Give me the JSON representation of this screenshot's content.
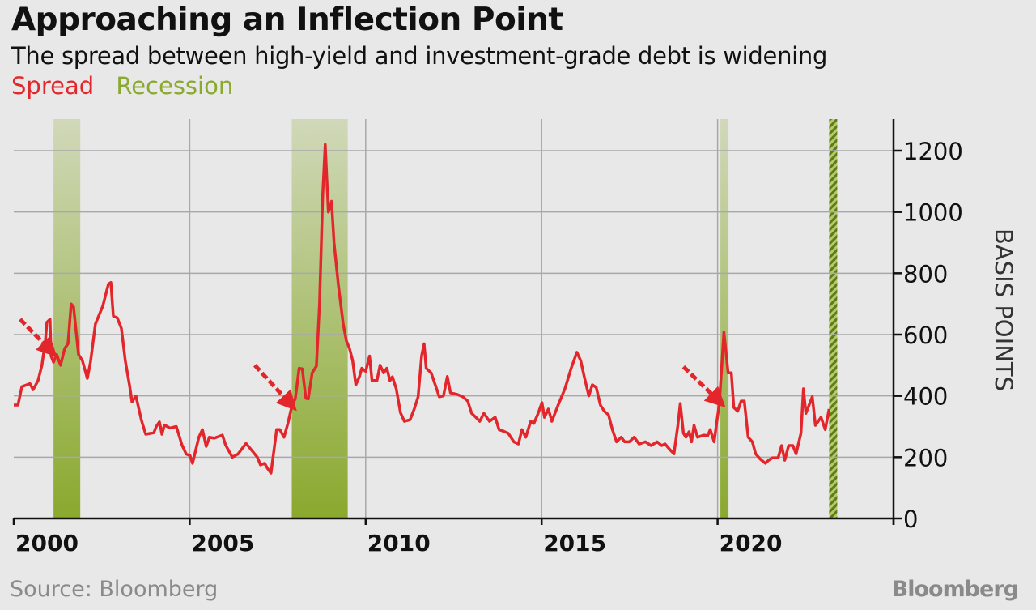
{
  "chart_data": {
    "type": "line",
    "title": "Approaching an Inflection Point",
    "subtitle": "The spread between high-yield and investment-grade debt is widening",
    "legend": [
      {
        "name": "Spread",
        "color": "#e3262b"
      },
      {
        "name": "Recession",
        "color": "#8aa92e"
      }
    ],
    "legend_placement": "top-left",
    "ylabel": "BASIS POINTS",
    "xlabel": "",
    "xlim": [
      2000,
      2025
    ],
    "ylim": [
      0,
      1300
    ],
    "x_ticks": [
      2000,
      2005,
      2010,
      2015,
      2020
    ],
    "y_ticks": [
      0,
      200,
      400,
      600,
      800,
      1000,
      1200
    ],
    "grid": true,
    "y_axis_side": "right",
    "recessions": [
      {
        "start": 2001.13,
        "end": 2001.89,
        "style": "solid"
      },
      {
        "start": 2007.9,
        "end": 2009.49,
        "style": "solid"
      },
      {
        "start": 2020.08,
        "end": 2020.31,
        "style": "solid"
      },
      {
        "start": 2023.17,
        "end": 2023.4,
        "style": "hatched"
      }
    ],
    "annotations": [
      {
        "type": "arrow",
        "from": [
          2000.18,
          650
        ],
        "to": [
          2001.03,
          550
        ],
        "color": "#e3262b"
      },
      {
        "type": "arrow",
        "from": [
          2006.85,
          500
        ],
        "to": [
          2007.85,
          375
        ],
        "color": "#e3262b"
      },
      {
        "type": "arrow",
        "from": [
          2019.03,
          495
        ],
        "to": [
          2020.02,
          385
        ],
        "color": "#e3262b"
      }
    ],
    "series": [
      {
        "name": "Spread",
        "color": "#e3262b",
        "x": [
          2000.0,
          2000.12,
          2000.23,
          2000.35,
          2000.46,
          2000.55,
          2000.69,
          2000.8,
          2000.9,
          2000.94,
          2001.03,
          2001.06,
          2001.13,
          2001.22,
          2001.33,
          2001.45,
          2001.54,
          2001.63,
          2001.7,
          2001.84,
          2001.95,
          2002.09,
          2002.18,
          2002.32,
          2002.53,
          2002.69,
          2002.76,
          2002.83,
          2002.94,
          2003.06,
          2003.17,
          2003.29,
          2003.36,
          2003.47,
          2003.63,
          2003.75,
          2003.98,
          2004.05,
          2004.14,
          2004.21,
          2004.28,
          2004.44,
          2004.62,
          2004.78,
          2004.9,
          2005.01,
          2005.08,
          2005.26,
          2005.36,
          2005.47,
          2005.56,
          2005.7,
          2005.93,
          2006.02,
          2006.21,
          2006.37,
          2006.6,
          2006.78,
          2006.92,
          2007.01,
          2007.13,
          2007.2,
          2007.31,
          2007.47,
          2007.56,
          2007.68,
          2007.79,
          2007.91,
          2008.0,
          2008.11,
          2008.2,
          2008.3,
          2008.37,
          2008.48,
          2008.6,
          2008.69,
          2008.78,
          2008.85,
          2008.94,
          2009.03,
          2009.1,
          2009.22,
          2009.36,
          2009.45,
          2009.54,
          2009.63,
          2009.72,
          2009.82,
          2009.89,
          2010.0,
          2010.11,
          2010.18,
          2010.32,
          2010.41,
          2010.51,
          2010.6,
          2010.69,
          2010.76,
          2010.87,
          2010.99,
          2011.1,
          2011.26,
          2011.38,
          2011.49,
          2011.59,
          2011.66,
          2011.72,
          2011.86,
          2011.98,
          2012.09,
          2012.21,
          2012.32,
          2012.41,
          2012.6,
          2012.76,
          2012.9,
          2013.01,
          2013.13,
          2013.24,
          2013.36,
          2013.52,
          2013.68,
          2013.79,
          2013.91,
          2014.05,
          2014.21,
          2014.34,
          2014.44,
          2014.55,
          2014.69,
          2014.78,
          2014.9,
          2015.01,
          2015.08,
          2015.19,
          2015.29,
          2015.47,
          2015.66,
          2015.84,
          2016.0,
          2016.11,
          2016.21,
          2016.34,
          2016.44,
          2016.55,
          2016.67,
          2016.78,
          2016.9,
          2017.01,
          2017.13,
          2017.26,
          2017.36,
          2017.49,
          2017.63,
          2017.77,
          2017.95,
          2018.11,
          2018.28,
          2018.41,
          2018.51,
          2018.64,
          2018.76,
          2018.87,
          2018.94,
          2019.03,
          2019.1,
          2019.19,
          2019.26,
          2019.33,
          2019.43,
          2019.61,
          2019.72,
          2019.79,
          2019.9,
          2019.98,
          2020.05,
          2020.18,
          2020.3,
          2020.39,
          2020.46,
          2020.57,
          2020.67,
          2020.76,
          2020.87,
          2020.99,
          2021.08,
          2021.22,
          2021.36,
          2021.45,
          2021.56,
          2021.72,
          2021.82,
          2021.91,
          2022.02,
          2022.14,
          2022.23,
          2022.37,
          2022.44,
          2022.51,
          2022.69,
          2022.78,
          2022.94,
          2023.06,
          2023.17
        ],
        "y": [
          370,
          370,
          430,
          435,
          440,
          420,
          450,
          500,
          580,
          640,
          650,
          530,
          510,
          535,
          500,
          555,
          570,
          700,
          690,
          535,
          515,
          457,
          510,
          635,
          693,
          765,
          770,
          660,
          655,
          620,
          515,
          435,
          380,
          400,
          320,
          275,
          280,
          300,
          315,
          275,
          305,
          295,
          300,
          240,
          210,
          205,
          180,
          265,
          290,
          235,
          265,
          262,
          272,
          240,
          200,
          210,
          245,
          220,
          200,
          175,
          180,
          165,
          148,
          290,
          290,
          265,
          310,
          370,
          390,
          490,
          488,
          392,
          390,
          475,
          497,
          700,
          1060,
          1220,
          1000,
          1035,
          900,
          765,
          635,
          580,
          555,
          515,
          436,
          462,
          490,
          480,
          530,
          450,
          450,
          500,
          475,
          490,
          450,
          462,
          423,
          345,
          317,
          322,
          357,
          397,
          530,
          570,
          490,
          475,
          435,
          397,
          400,
          463,
          410,
          405,
          397,
          383,
          343,
          330,
          317,
          343,
          317,
          330,
          290,
          285,
          278,
          250,
          243,
          290,
          265,
          317,
          310,
          343,
          378,
          330,
          357,
          317,
          370,
          423,
          490,
          542,
          515,
          463,
          400,
          436,
          428,
          370,
          350,
          338,
          290,
          250,
          265,
          250,
          250,
          265,
          243,
          250,
          238,
          250,
          238,
          243,
          225,
          211,
          304,
          375,
          278,
          265,
          283,
          250,
          304,
          265,
          272,
          270,
          290,
          250,
          317,
          375,
          608,
          475,
          475,
          362,
          350,
          383,
          383,
          265,
          250,
          211,
          193,
          180,
          190,
          198,
          198,
          238,
          190,
          238,
          238,
          211,
          278,
          423,
          343,
          397,
          304,
          330,
          290,
          357
        ]
      }
    ]
  },
  "source": "Source: Bloomberg",
  "logo": "Bloomberg"
}
